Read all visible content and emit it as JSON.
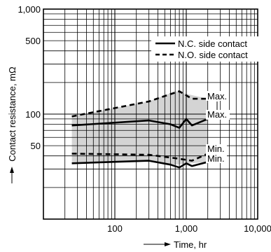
{
  "chart_data": {
    "type": "line",
    "title": "",
    "xlabel": "Time, hr",
    "ylabel": "Contact resistance, mΩ",
    "x_scale": "log",
    "y_scale": "log",
    "xlim": [
      10,
      10000
    ],
    "ylim": [
      10,
      1000
    ],
    "x_ticks": [
      "100",
      "1,000",
      "10,000"
    ],
    "y_ticks": [
      "1,000",
      "500",
      "100",
      "50"
    ],
    "grid": true,
    "legend": "top-right",
    "series": [
      {
        "name": "N.C. side contact",
        "style": "solid",
        "x": [
          25,
          300,
          600,
          800,
          1000,
          1200,
          2000
        ],
        "y": [
          78,
          87,
          80,
          74,
          90,
          78,
          90
        ]
      },
      {
        "name": "N.C. side contact",
        "style": "solid",
        "x": [
          25,
          300,
          600,
          800,
          1000,
          1200,
          2000
        ],
        "y": [
          34,
          36,
          33,
          31,
          34,
          32,
          35
        ]
      },
      {
        "name": "N.O. side contact",
        "style": "dashed",
        "x": [
          25,
          300,
          600,
          800,
          1200,
          2000
        ],
        "y": [
          95,
          132,
          155,
          165,
          140,
          140
        ]
      },
      {
        "name": "N.O. side contact",
        "style": "dashed",
        "x": [
          25,
          300,
          700,
          1200,
          2000
        ],
        "y": [
          42,
          41,
          38,
          36,
          42
        ]
      }
    ],
    "band": {
      "x": [
        25,
        300,
        700,
        2000
      ],
      "upper": [
        95,
        132,
        165,
        140
      ],
      "lower": [
        34,
        36,
        33,
        35
      ],
      "color": "#d4d4d4"
    },
    "annotations": [
      "Max.",
      "Max.",
      "Min.",
      "Min."
    ]
  },
  "axis_labels": {
    "x": "Time, hr",
    "y": "Contact resistance, mΩ"
  },
  "legend": {
    "nc": "N.C. side contact",
    "no": "N.O. side contact"
  },
  "annotations": {
    "max_no": "Max.",
    "max_nc": "Max.",
    "min_no": "Min.",
    "min_nc": "Min."
  },
  "colors": {
    "band": "#d4d4d4",
    "line": "#000000",
    "grid": "#000000"
  }
}
